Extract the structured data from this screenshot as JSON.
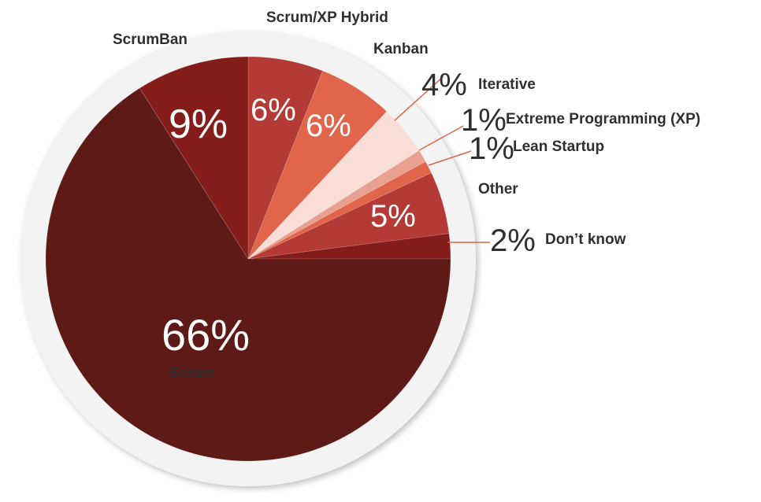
{
  "chart_data": {
    "type": "pie",
    "title": "",
    "start_angle_deg": 0,
    "direction": "clockwise",
    "slices": [
      {
        "name": "Scrum/XP Hybrid",
        "value": 6,
        "label": "6%",
        "color": "#b33a35"
      },
      {
        "name": "Kanban",
        "value": 6,
        "label": "6%",
        "color": "#e0654a"
      },
      {
        "name": "Iterative",
        "value": 4,
        "label": "4%",
        "color": "#f8ded7"
      },
      {
        "name": "Extreme Programming (XP)",
        "value": 1,
        "label": "1%",
        "color": "#e8a191"
      },
      {
        "name": "Lean Startup",
        "value": 1,
        "label": "1%",
        "color": "#e0654a"
      },
      {
        "name": "Other",
        "value": 5,
        "label": "5%",
        "color": "#b33a35"
      },
      {
        "name": "Don’t know",
        "value": 2,
        "label": "2%",
        "color": "#841c1a"
      },
      {
        "name": "Scrum",
        "value": 66,
        "label": "66%",
        "color": "#5e1a17"
      },
      {
        "name": "ScrumBan",
        "value": 9,
        "label": "9%",
        "color": "#841c1a"
      }
    ],
    "leader_color": "#e0654a",
    "ring_color": "#f3f3f3"
  }
}
